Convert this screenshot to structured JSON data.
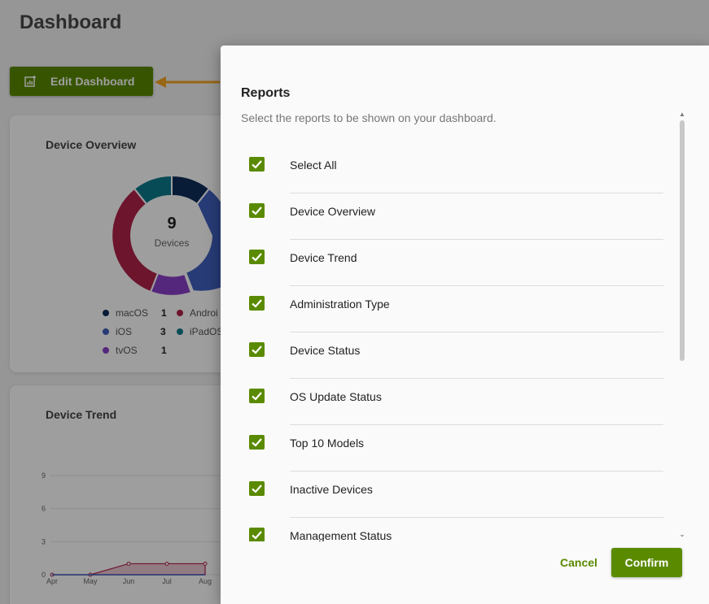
{
  "dashboard": {
    "title": "Dashboard",
    "edit_button": "Edit Dashboard",
    "device_overview": {
      "title": "Device Overview",
      "total": "9",
      "total_label": "Devices",
      "legend": [
        {
          "name": "macOS",
          "count": "1",
          "color": "#0d2c5a"
        },
        {
          "name": "Androi",
          "count": "",
          "color": "#b0234a"
        },
        {
          "name": "iOS",
          "count": "3",
          "color": "#3f5fbf"
        },
        {
          "name": "iPadOS",
          "count": "",
          "color": "#0c7a8c"
        },
        {
          "name": "tvOS",
          "count": "1",
          "color": "#8a40c8"
        }
      ]
    },
    "device_trend": {
      "title": "Device Trend"
    }
  },
  "chart_data": {
    "type": "area",
    "x": [
      "Apr",
      "May",
      "Jun",
      "Jul",
      "Aug"
    ],
    "y_ticks": [
      "9",
      "6",
      "3",
      "0"
    ],
    "ylim": [
      0,
      9
    ],
    "series": [
      {
        "values": [
          0,
          0,
          1,
          1,
          1
        ],
        "color": "#b0234a"
      },
      {
        "values": [
          0,
          0,
          0,
          0,
          0
        ],
        "color": "#3f5fbf"
      }
    ]
  },
  "modal": {
    "title": "Reports",
    "subtitle": "Select the reports to be shown on your dashboard.",
    "items": [
      {
        "label": "Select All",
        "checked": true
      },
      {
        "label": "Device Overview",
        "checked": true
      },
      {
        "label": "Device Trend",
        "checked": true
      },
      {
        "label": "Administration Type",
        "checked": true
      },
      {
        "label": "Device Status",
        "checked": true
      },
      {
        "label": "OS Update Status",
        "checked": true
      },
      {
        "label": "Top 10 Models",
        "checked": true
      },
      {
        "label": "Inactive Devices",
        "checked": true
      },
      {
        "label": "Management Status",
        "checked": true
      }
    ],
    "cancel_label": "Cancel",
    "confirm_label": "Confirm"
  },
  "colors": {
    "accent": "#5a8a00",
    "arrow": "#f5a623"
  }
}
